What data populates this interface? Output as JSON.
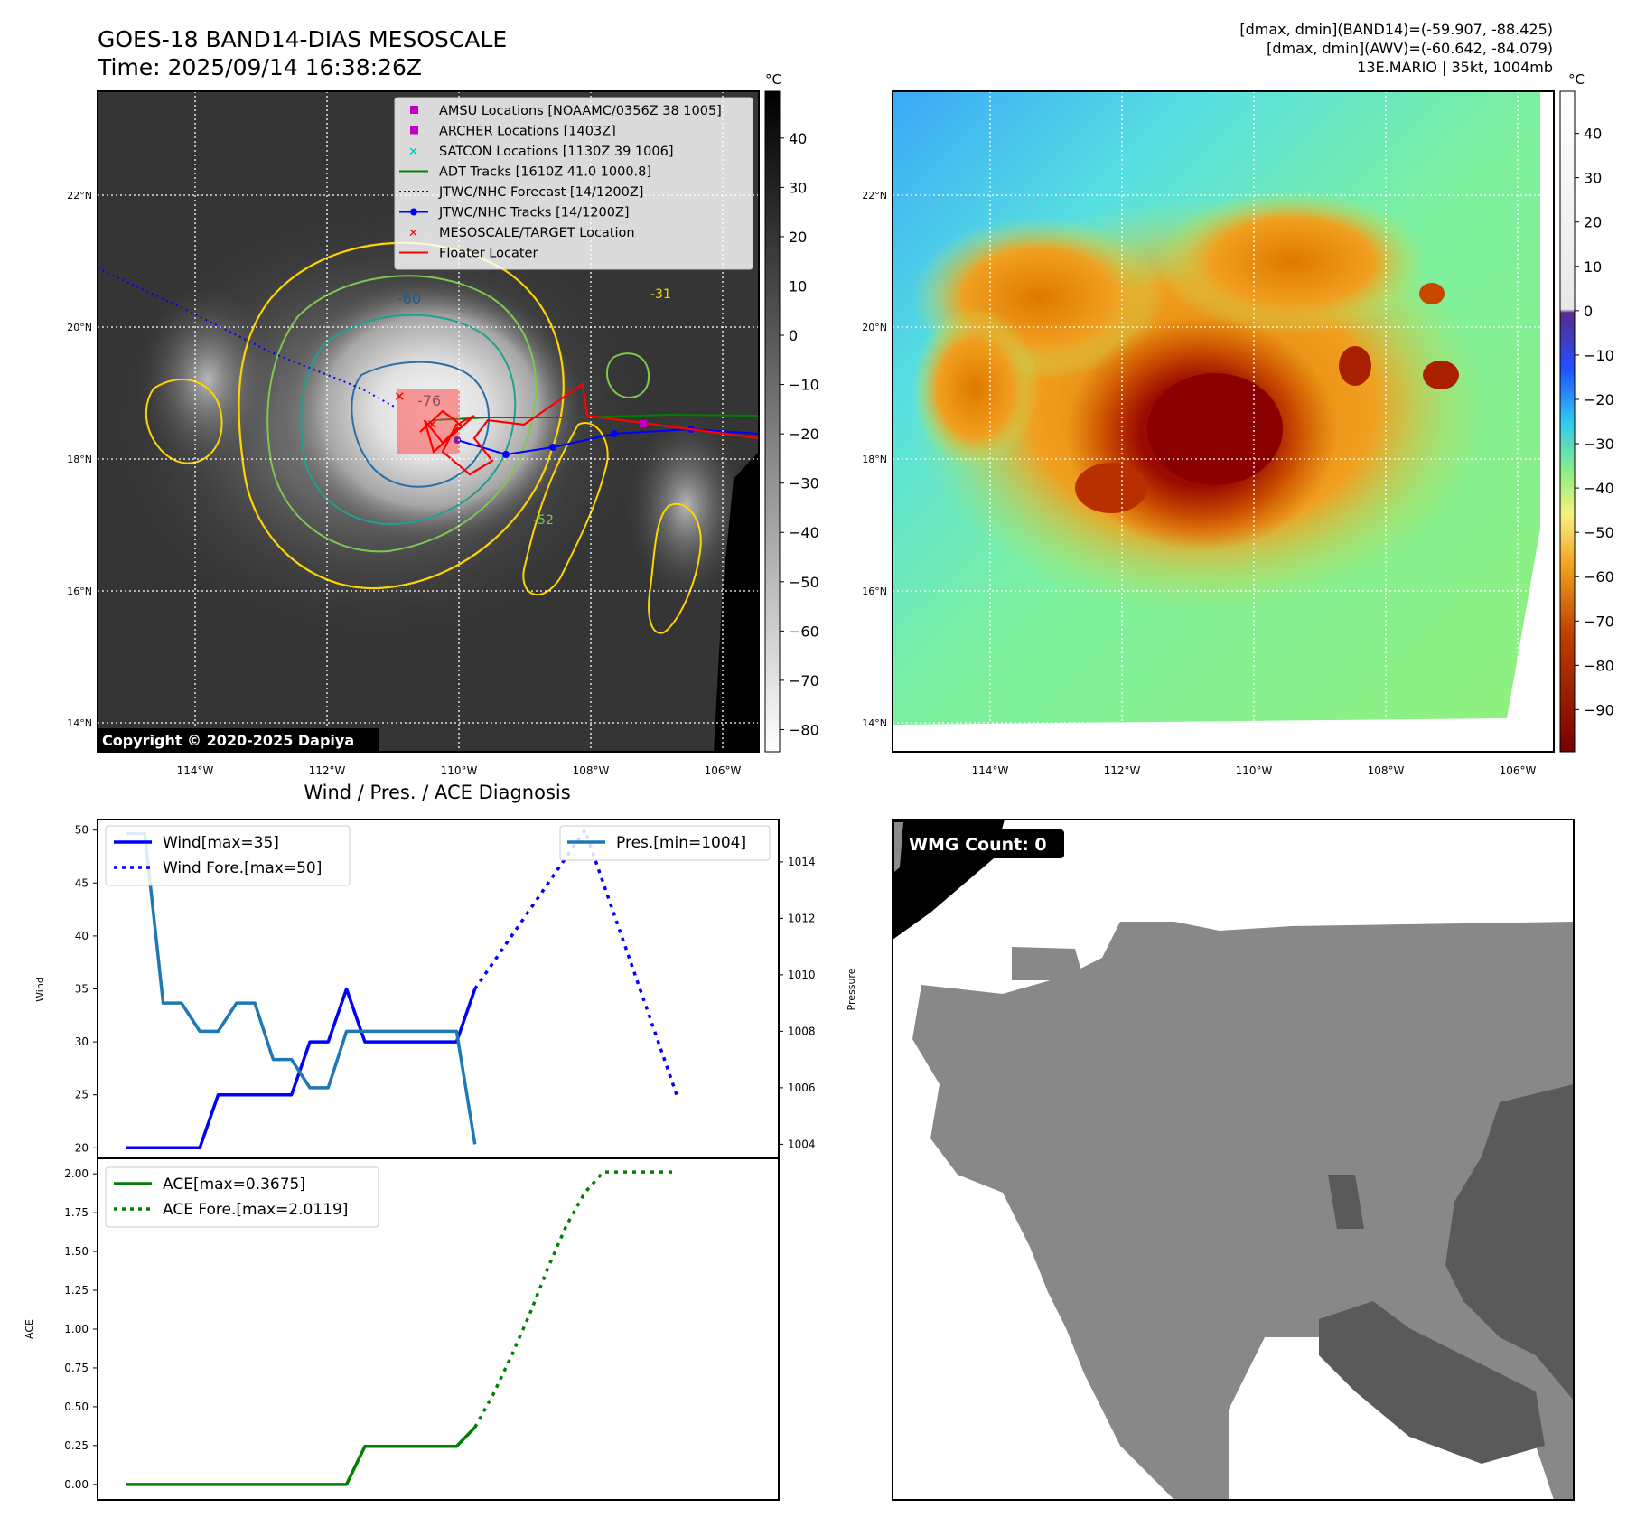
{
  "header": {
    "title_line1": "GOES-18 BAND14-DIAS MESOSCALE",
    "title_line2": "Time: 2025/09/14 16:38:26Z",
    "stats_line1": "[dmax, dmin](BAND14)=(-59.907, -88.425)",
    "stats_line2": "[dmax, dmin](AWV)=(-60.642, -84.079)",
    "stats_line3": "13E.MARIO | 35kt, 1004mb"
  },
  "ir_panel": {
    "lon_labels": [
      "114°W",
      "112°W",
      "110°W",
      "108°W",
      "106°W"
    ],
    "lat_labels": [
      "22°N",
      "20°N",
      "18°N",
      "16°N",
      "14°N"
    ],
    "copyright": "Copyright © 2020-2025 Dapiya",
    "colorbar_unit": "°C",
    "colorbar_ticks": [
      40,
      30,
      20,
      10,
      0,
      -10,
      -20,
      -30,
      -40,
      -50,
      -60,
      -70,
      -80
    ],
    "contour_labels": [
      "-76",
      "-60",
      "-31",
      "-52"
    ],
    "legend": [
      {
        "label": "AMSU Locations [NOAAMC/0356Z 38 1005]",
        "symbol": "square",
        "color": "#c000c0"
      },
      {
        "label": "ARCHER Locations [1403Z]",
        "symbol": "square",
        "color": "#c000c0"
      },
      {
        "label": "SATCON Locations [1130Z 39 1006]",
        "symbol": "x",
        "color": "#00c0c0"
      },
      {
        "label": "ADT Tracks [1610Z 41.0 1000.8]",
        "symbol": "line",
        "color": "#008000"
      },
      {
        "label": "JTWC/NHC Forecast [14/1200Z]",
        "symbol": "dotted",
        "color": "#0000ff"
      },
      {
        "label": "JTWC/NHC Tracks [14/1200Z]",
        "symbol": "line-dot",
        "color": "#0000ff"
      },
      {
        "label": "MESOSCALE/TARGET Location",
        "symbol": "x",
        "color": "#ff0000"
      },
      {
        "label": "Floater Locater",
        "symbol": "line",
        "color": "#ff0000"
      }
    ]
  },
  "awv_panel": {
    "lon_labels": [
      "114°W",
      "112°W",
      "110°W",
      "108°W",
      "106°W"
    ],
    "lat_labels": [
      "22°N",
      "20°N",
      "18°N",
      "16°N",
      "14°N"
    ],
    "colorbar_unit": "°C",
    "colorbar_ticks": [
      40,
      30,
      20,
      10,
      0,
      -10,
      -20,
      -30,
      -40,
      -50,
      -60,
      -70,
      -80,
      -90
    ]
  },
  "wmg_panel": {
    "badge": "WMG Count: 0"
  },
  "chart_data": [
    {
      "type": "line",
      "title": "Wind / Pres. / ACE Diagnosis",
      "ylabel": "Wind",
      "ylabel_right": "Pressure",
      "ylim": [
        19,
        51
      ],
      "ylim_right": [
        1003.5,
        1015.5
      ],
      "yticks": [
        20,
        25,
        30,
        35,
        40,
        45,
        50
      ],
      "yticks_right": [
        1004,
        1006,
        1008,
        1010,
        1012,
        1014
      ],
      "legend_left": [
        "Wind[max=35]",
        "Wind Fore.[max=50]"
      ],
      "legend_right": [
        "Pres.[min=1004]"
      ],
      "series": [
        {
          "name": "Wind[max=35]",
          "color": "#0000ff",
          "style": "solid",
          "x": [
            0,
            1,
            2,
            3,
            4,
            5,
            6,
            7,
            8,
            9,
            10,
            11,
            12,
            13,
            14,
            15,
            16,
            17,
            18,
            19,
            20,
            21,
            22,
            23
          ],
          "values": [
            20,
            20,
            20,
            20,
            20,
            25,
            25,
            25,
            25,
            25,
            30,
            30,
            35,
            30,
            30,
            30,
            30,
            30,
            30,
            35,
            null,
            null,
            null,
            null
          ]
        },
        {
          "name": "Wind Fore.[max=50]",
          "color": "#0000ff",
          "style": "dotted",
          "x": [
            19,
            20,
            21,
            22,
            23,
            24,
            25,
            26,
            27,
            28,
            29,
            30
          ],
          "values": [
            35,
            37.5,
            40,
            42.5,
            45,
            47.5,
            50,
            45,
            40,
            35,
            30,
            25
          ]
        },
        {
          "name": "Pres.[min=1004]",
          "color": "#1f77b4",
          "style": "solid",
          "axis": "right",
          "x": [
            0,
            1,
            2,
            3,
            4,
            5,
            6,
            7,
            8,
            9,
            10,
            11,
            12,
            13,
            14,
            15,
            16,
            17,
            18,
            19
          ],
          "values": [
            1015,
            1015,
            1009,
            1009,
            1008,
            1008,
            1009,
            1009,
            1007,
            1007,
            1006,
            1006,
            1008,
            1008,
            1008,
            1008,
            1008,
            1008,
            1008,
            1004
          ]
        }
      ]
    },
    {
      "type": "line",
      "ylabel": "ACE",
      "ylim": [
        -0.1,
        2.1
      ],
      "yticks": [
        0.0,
        0.25,
        0.5,
        0.75,
        1.0,
        1.25,
        1.5,
        1.75,
        2.0
      ],
      "ytick_labels": [
        "0.00",
        "0.25",
        "0.50",
        "0.75",
        "1.00",
        "1.25",
        "1.50",
        "1.75",
        "2.00"
      ],
      "legend": [
        "ACE[max=0.3675]",
        "ACE Fore.[max=2.0119]"
      ],
      "series": [
        {
          "name": "ACE[max=0.3675]",
          "color": "#008000",
          "style": "solid",
          "x": [
            0,
            1,
            2,
            3,
            4,
            5,
            6,
            7,
            8,
            9,
            10,
            11,
            12,
            13,
            14,
            15,
            16,
            17,
            18,
            19
          ],
          "values": [
            0,
            0,
            0,
            0,
            0,
            0,
            0,
            0,
            0,
            0,
            0,
            0,
            0.0,
            0.245,
            0.245,
            0.245,
            0.245,
            0.245,
            0.245,
            0.3675
          ]
        },
        {
          "name": "ACE Fore.[max=2.0119]",
          "color": "#008000",
          "style": "dotted",
          "x": [
            19,
            20,
            21,
            22,
            23,
            24,
            25,
            26,
            27,
            28,
            29,
            30
          ],
          "values": [
            0.3675,
            0.58,
            0.83,
            1.1,
            1.4,
            1.67,
            1.88,
            2.0119,
            2.0119,
            2.0119,
            2.0119,
            2.0119
          ]
        }
      ]
    }
  ]
}
